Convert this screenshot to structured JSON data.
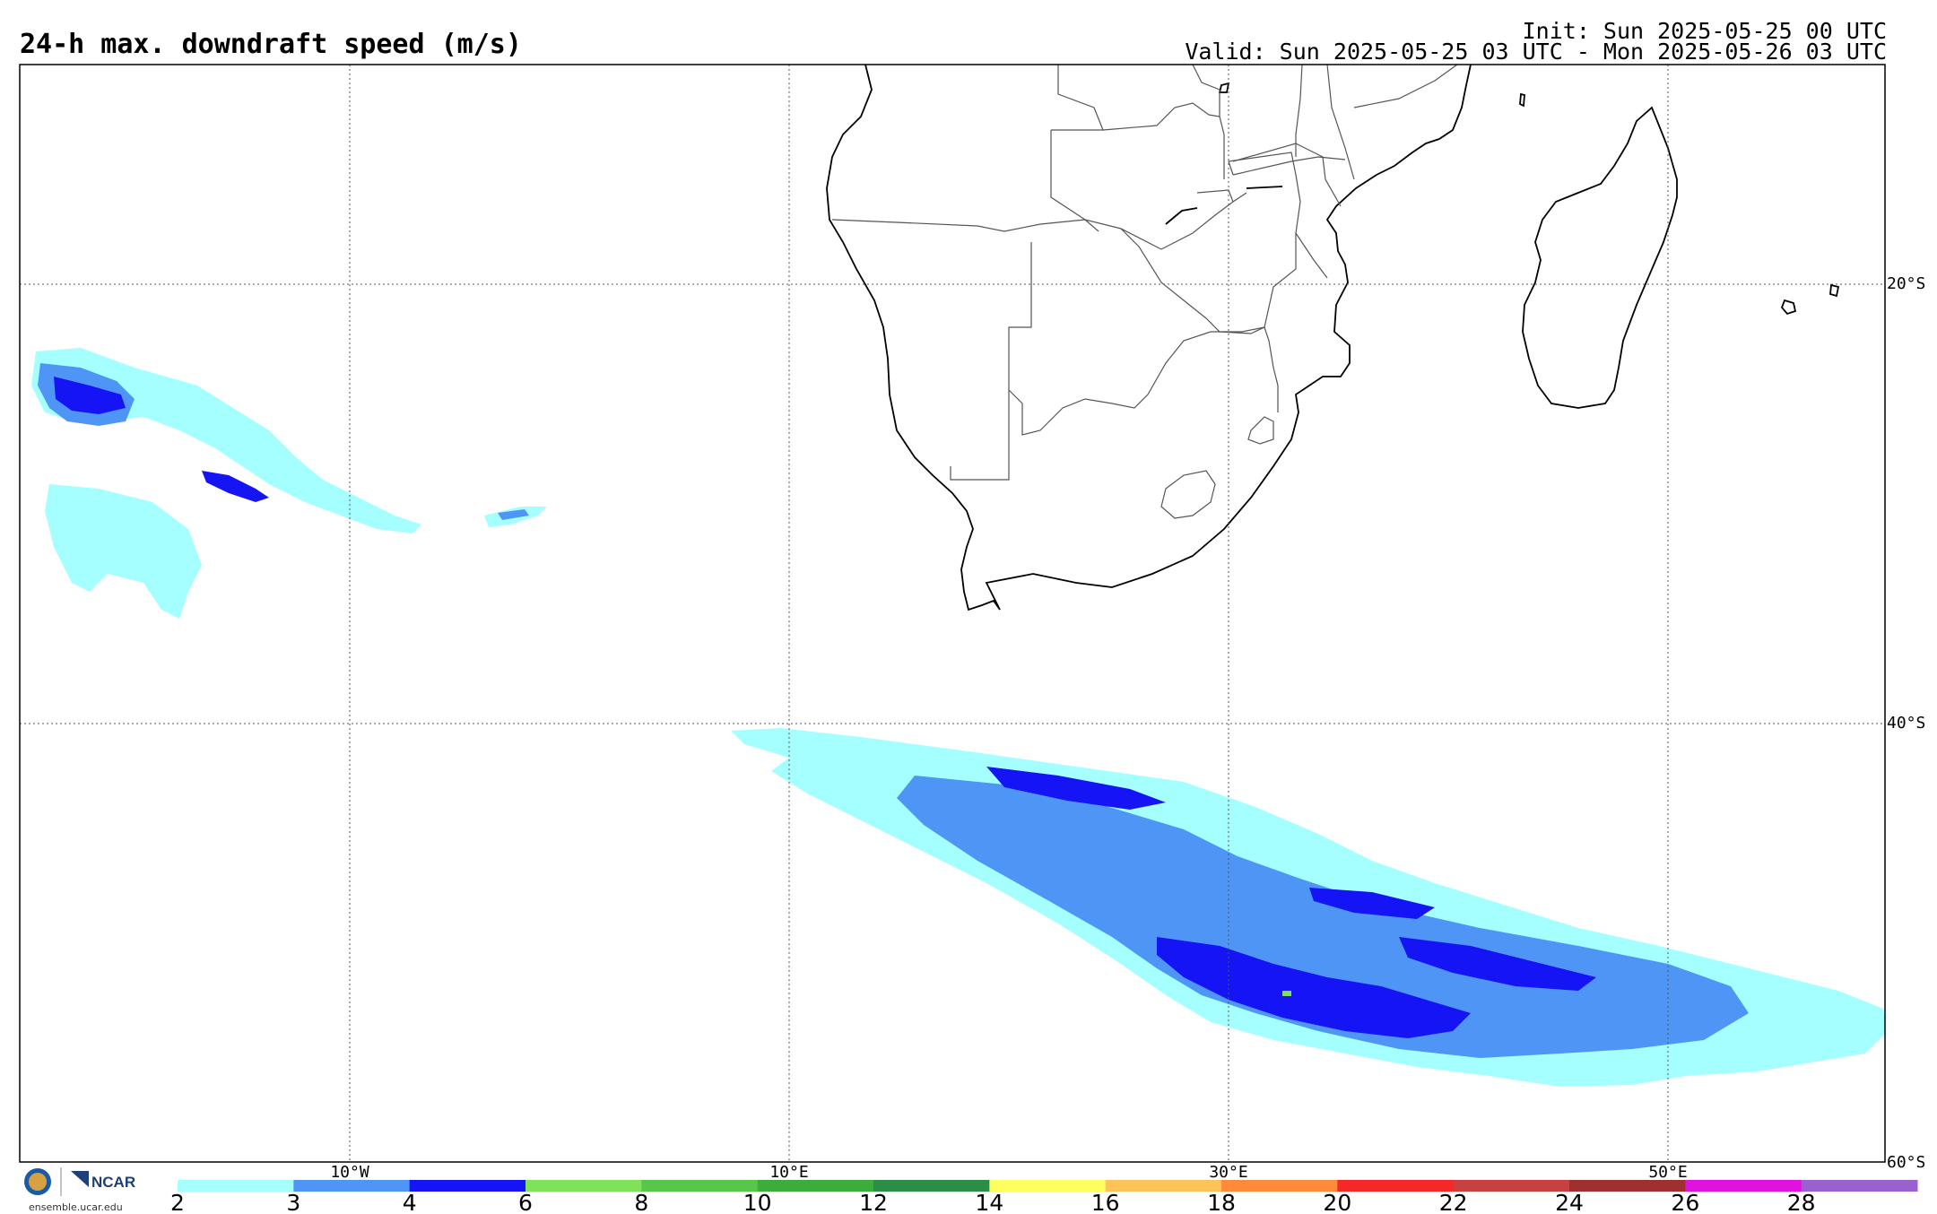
{
  "header": {
    "title": "24-h max. downdraft speed (m/s)",
    "init": "Init: Sun 2025-05-25 00 UTC",
    "valid": "Valid: Sun 2025-05-25 03 UTC - Mon 2025-05-26 03 UTC"
  },
  "map": {
    "lat_labels": [
      "20°S",
      "40°S",
      "60°S"
    ],
    "lon_labels": [
      "10°W",
      "10°E",
      "30°E",
      "50°E"
    ]
  },
  "colorbar": {
    "ticks": [
      "2",
      "3",
      "4",
      "6",
      "8",
      "10",
      "12",
      "14",
      "16",
      "18",
      "20",
      "22",
      "24",
      "26",
      "28"
    ],
    "colors": [
      "#a6ffff",
      "#4f95f5",
      "#1414f5",
      "#7ee35a",
      "#55c84a",
      "#3aad3a",
      "#2a8f45",
      "#ffff60",
      "#ffc35a",
      "#ff8a3a",
      "#f52828",
      "#c84040",
      "#a03030",
      "#e012e0",
      "#9a60d0"
    ]
  },
  "logo": {
    "org": "NCAR",
    "nsf": "NSF",
    "site": "ensemble.ucar.edu"
  },
  "colors": {
    "light": "#a6ffff",
    "mid": "#4f95f5",
    "dark": "#1414f5",
    "green": "#7ee35a"
  }
}
